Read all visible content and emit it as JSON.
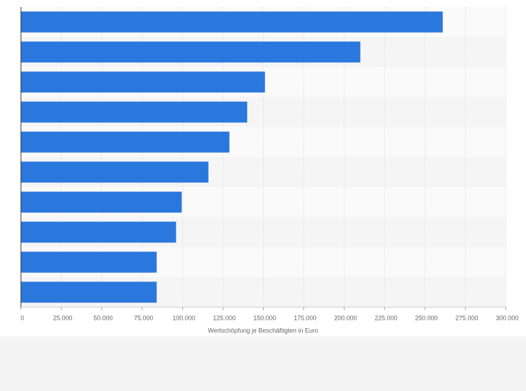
{
  "chart_data": {
    "type": "bar",
    "orientation": "horizontal",
    "x_label": "Wertschöpfung je Beschäftigten in Euro",
    "values": [
      261000,
      210000,
      151000,
      140000,
      129000,
      116000,
      99500,
      96000,
      84000,
      84000
    ],
    "color": "#2a77dd",
    "xlim": [
      0,
      300000
    ],
    "xticks": [
      0,
      {
        "value": 25000,
        "label": "25.000"
      },
      {
        "value": 50000,
        "label": "50.000"
      },
      {
        "value": 75000,
        "label": "75.000"
      },
      {
        "value": 100000,
        "label": "100.000"
      },
      {
        "value": 125000,
        "label": "125.000"
      },
      {
        "value": 150000,
        "label": "150.000"
      },
      {
        "value": 175000,
        "label": "175.000"
      },
      {
        "value": 200000,
        "label": "200.000"
      },
      {
        "value": 225000,
        "label": "225.000"
      },
      {
        "value": 250000,
        "label": "250.000"
      },
      {
        "value": 275000,
        "label": "275.000"
      },
      {
        "value": 300000,
        "label": "300.000"
      }
    ],
    "grid": true
  }
}
